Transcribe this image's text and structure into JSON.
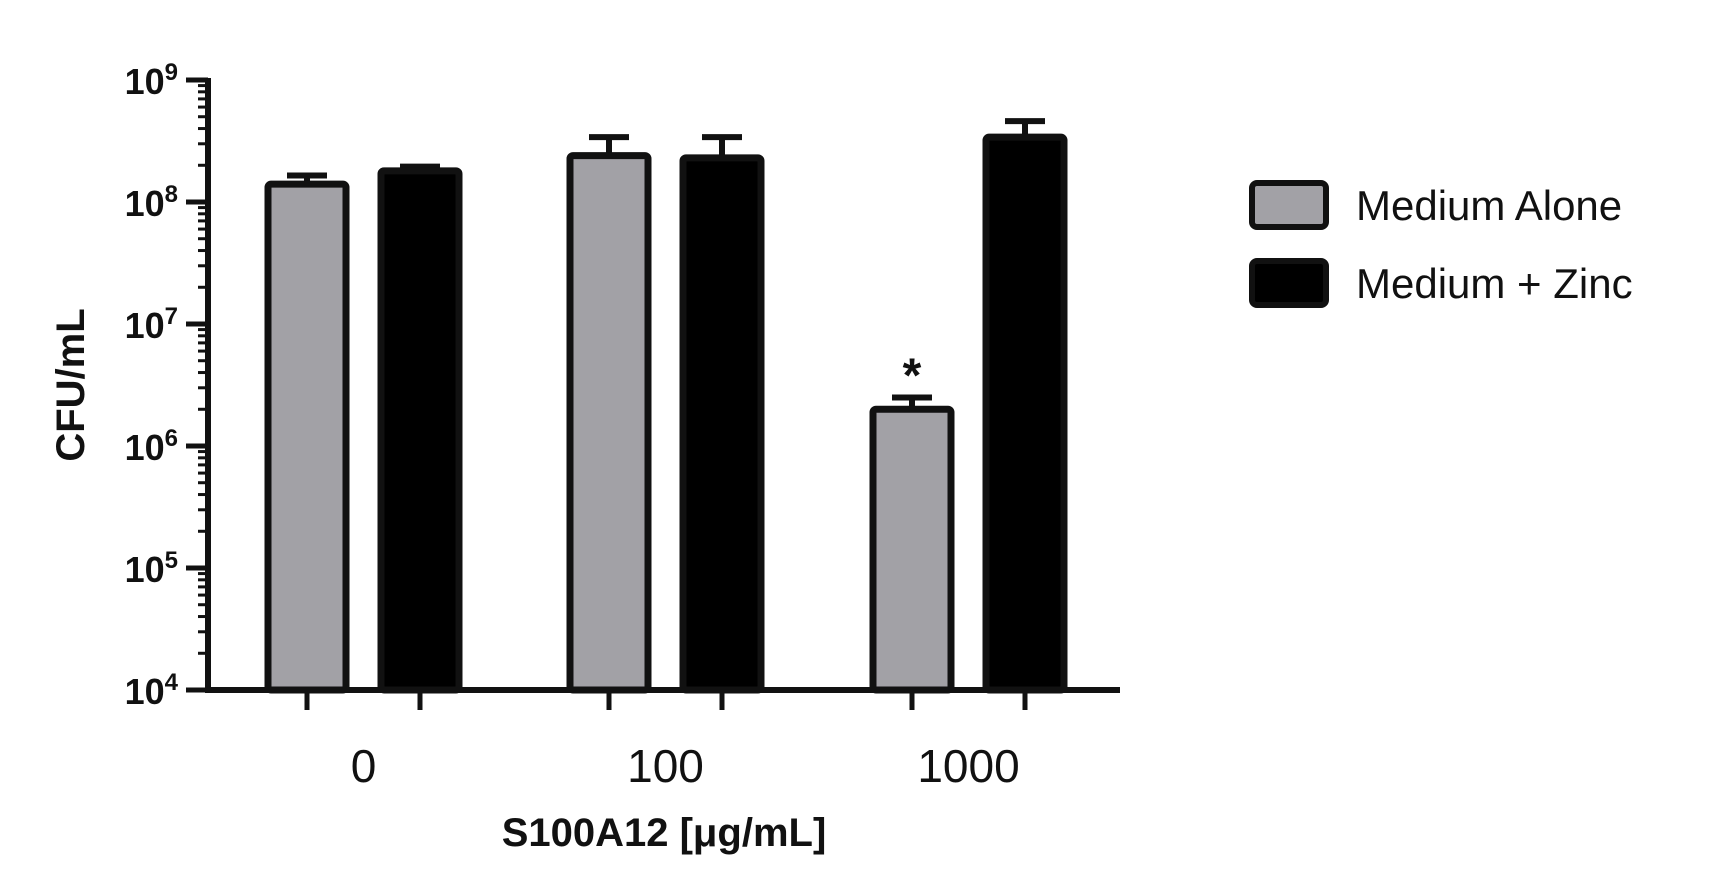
{
  "chart_data": {
    "type": "bar",
    "title": "",
    "xlabel": "S100A12 [μg/mL]",
    "ylabel": "CFU/mL",
    "yscale": "log",
    "ylim": [
      10000,
      1000000000
    ],
    "yticks": [
      {
        "value": 10000,
        "base": "10",
        "exp": "4"
      },
      {
        "value": 100000,
        "base": "10",
        "exp": "5"
      },
      {
        "value": 1000000,
        "base": "10",
        "exp": "6"
      },
      {
        "value": 10000000,
        "base": "10",
        "exp": "7"
      },
      {
        "value": 100000000,
        "base": "10",
        "exp": "8"
      },
      {
        "value": 1000000000,
        "base": "10",
        "exp": "9"
      }
    ],
    "categories": [
      "0",
      "100",
      "1000"
    ],
    "series": [
      {
        "name": "Medium Alone",
        "color": "#a2a1a6",
        "values": [
          140000000,
          240000000,
          2000000
        ],
        "errors_upper": [
          165000000,
          340000000,
          2500000
        ]
      },
      {
        "name": "Medium + Zinc",
        "color": "#000000",
        "values": [
          180000000,
          230000000,
          340000000
        ],
        "errors_upper": [
          195000000,
          340000000,
          460000000
        ]
      }
    ],
    "annotations": [
      {
        "text": "*",
        "category": "1000",
        "series": "Medium Alone"
      }
    ],
    "legend": {
      "position": "right"
    },
    "grid": false
  }
}
